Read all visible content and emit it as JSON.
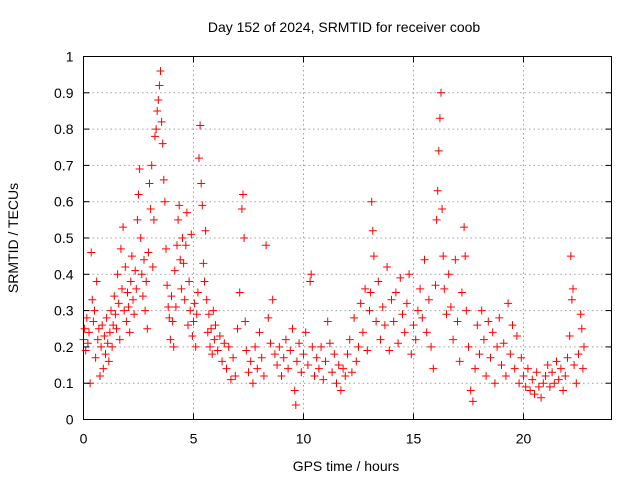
{
  "chart_data": {
    "type": "scatter",
    "title": "Day 152 of 2024, SRMTID for receiver coob",
    "xlabel": "GPS time / hours",
    "ylabel": "SRMTID / TECUs",
    "xlim": [
      0,
      24
    ],
    "ylim": [
      0,
      1
    ],
    "x_ticks": [
      0,
      5,
      10,
      15,
      20
    ],
    "x_tick_labels": [
      "0",
      "5",
      "10",
      "15",
      "20"
    ],
    "y_ticks": [
      0,
      0.1,
      0.2,
      0.3,
      0.4,
      0.5,
      0.6,
      0.7,
      0.8,
      0.9,
      1
    ],
    "y_tick_labels": [
      "0",
      "0.1",
      "0.2",
      "0.3",
      "0.4",
      "0.5",
      "0.6",
      "0.7",
      "0.8",
      "0.9",
      "1"
    ],
    "grid": true,
    "marker": "+",
    "color": "#ff0000",
    "series": [
      {
        "name": "SRMTID",
        "points": [
          [
            0.0,
            0.22
          ],
          [
            0.05,
            0.25
          ],
          [
            0.1,
            0.19
          ],
          [
            0.15,
            0.28
          ],
          [
            0.2,
            0.21
          ],
          [
            0.25,
            0.24
          ],
          [
            0.3,
            0.1
          ],
          [
            0.35,
            0.46
          ],
          [
            0.4,
            0.33
          ],
          [
            0.45,
            0.27
          ],
          [
            0.5,
            0.3
          ],
          [
            0.55,
            0.17
          ],
          [
            0.6,
            0.38
          ],
          [
            0.65,
            0.22
          ],
          [
            0.7,
            0.25
          ],
          [
            0.75,
            0.12
          ],
          [
            0.8,
            0.2
          ],
          [
            0.85,
            0.26
          ],
          [
            0.9,
            0.14
          ],
          [
            0.95,
            0.23
          ],
          [
            1.0,
            0.18
          ],
          [
            1.05,
            0.28
          ],
          [
            1.1,
            0.21
          ],
          [
            1.15,
            0.16
          ],
          [
            1.2,
            0.24
          ],
          [
            1.25,
            0.3
          ],
          [
            1.3,
            0.2
          ],
          [
            1.35,
            0.26
          ],
          [
            1.4,
            0.34
          ],
          [
            1.45,
            0.29
          ],
          [
            1.5,
            0.25
          ],
          [
            1.55,
            0.4
          ],
          [
            1.6,
            0.32
          ],
          [
            1.65,
            0.22
          ],
          [
            1.7,
            0.47
          ],
          [
            1.75,
            0.36
          ],
          [
            1.8,
            0.53
          ],
          [
            1.85,
            0.3
          ],
          [
            1.9,
            0.42
          ],
          [
            1.95,
            0.27
          ],
          [
            2.0,
            0.35
          ],
          [
            2.05,
            0.31
          ],
          [
            2.1,
            0.24
          ],
          [
            2.15,
            0.38
          ],
          [
            2.2,
            0.45
          ],
          [
            2.25,
            0.33
          ],
          [
            2.3,
            0.29
          ],
          [
            2.35,
            0.41
          ],
          [
            2.4,
            0.36
          ],
          [
            2.45,
            0.55
          ],
          [
            2.5,
            0.62
          ],
          [
            2.55,
            0.69
          ],
          [
            2.6,
            0.5
          ],
          [
            2.65,
            0.4
          ],
          [
            2.7,
            0.34
          ],
          [
            2.75,
            0.44
          ],
          [
            2.8,
            0.3
          ],
          [
            2.85,
            0.38
          ],
          [
            2.9,
            0.25
          ],
          [
            2.95,
            0.46
          ],
          [
            3.0,
            0.65
          ],
          [
            3.05,
            0.58
          ],
          [
            3.1,
            0.7
          ],
          [
            3.15,
            0.42
          ],
          [
            3.2,
            0.55
          ],
          [
            3.25,
            0.78
          ],
          [
            3.3,
            0.8
          ],
          [
            3.35,
            0.85
          ],
          [
            3.4,
            0.88
          ],
          [
            3.45,
            0.92
          ],
          [
            3.5,
            0.96
          ],
          [
            3.55,
            0.82
          ],
          [
            3.6,
            0.76
          ],
          [
            3.65,
            0.66
          ],
          [
            3.7,
            0.6
          ],
          [
            3.75,
            0.47
          ],
          [
            3.8,
            0.37
          ],
          [
            3.85,
            0.31
          ],
          [
            3.9,
            0.28
          ],
          [
            3.95,
            0.22
          ],
          [
            4.0,
            0.34
          ],
          [
            4.05,
            0.27
          ],
          [
            4.1,
            0.2
          ],
          [
            4.15,
            0.41
          ],
          [
            4.2,
            0.31
          ],
          [
            4.25,
            0.48
          ],
          [
            4.3,
            0.55
          ],
          [
            4.35,
            0.59
          ],
          [
            4.4,
            0.44
          ],
          [
            4.45,
            0.36
          ],
          [
            4.5,
            0.5
          ],
          [
            4.55,
            0.43
          ],
          [
            4.6,
            0.33
          ],
          [
            4.65,
            0.48
          ],
          [
            4.7,
            0.57
          ],
          [
            4.75,
            0.26
          ],
          [
            4.8,
            0.38
          ],
          [
            4.85,
            0.3
          ],
          [
            4.9,
            0.51
          ],
          [
            4.95,
            0.23
          ],
          [
            5.0,
            0.27
          ],
          [
            5.05,
            0.32
          ],
          [
            5.1,
            0.2
          ],
          [
            5.15,
            0.29
          ],
          [
            5.2,
            0.35
          ],
          [
            5.25,
            0.72
          ],
          [
            5.3,
            0.81
          ],
          [
            5.35,
            0.65
          ],
          [
            5.4,
            0.59
          ],
          [
            5.45,
            0.43
          ],
          [
            5.5,
            0.38
          ],
          [
            5.55,
            0.52
          ],
          [
            5.6,
            0.33
          ],
          [
            5.65,
            0.24
          ],
          [
            5.7,
            0.29
          ],
          [
            5.75,
            0.2
          ],
          [
            5.8,
            0.25
          ],
          [
            5.85,
            0.18
          ],
          [
            5.9,
            0.3
          ],
          [
            5.95,
            0.22
          ],
          [
            6.0,
            0.26
          ],
          [
            6.1,
            0.19
          ],
          [
            6.2,
            0.23
          ],
          [
            6.3,
            0.16
          ],
          [
            6.4,
            0.21
          ],
          [
            6.5,
            0.14
          ],
          [
            6.6,
            0.2
          ],
          [
            6.7,
            0.11
          ],
          [
            6.8,
            0.17
          ],
          [
            6.9,
            0.12
          ],
          [
            7.0,
            0.25
          ],
          [
            7.1,
            0.35
          ],
          [
            7.2,
            0.58
          ],
          [
            7.25,
            0.62
          ],
          [
            7.3,
            0.5
          ],
          [
            7.35,
            0.27
          ],
          [
            7.4,
            0.19
          ],
          [
            7.5,
            0.13
          ],
          [
            7.6,
            0.16
          ],
          [
            7.7,
            0.1
          ],
          [
            7.8,
            0.2
          ],
          [
            7.9,
            0.14
          ],
          [
            8.0,
            0.24
          ],
          [
            8.1,
            0.17
          ],
          [
            8.2,
            0.12
          ],
          [
            8.3,
            0.48
          ],
          [
            8.4,
            0.28
          ],
          [
            8.5,
            0.21
          ],
          [
            8.6,
            0.33
          ],
          [
            8.7,
            0.18
          ],
          [
            8.8,
            0.15
          ],
          [
            8.9,
            0.2
          ],
          [
            9.0,
            0.12
          ],
          [
            9.1,
            0.17
          ],
          [
            9.2,
            0.22
          ],
          [
            9.3,
            0.14
          ],
          [
            9.4,
            0.19
          ],
          [
            9.5,
            0.25
          ],
          [
            9.6,
            0.08
          ],
          [
            9.65,
            0.04
          ],
          [
            9.7,
            0.16
          ],
          [
            9.8,
            0.21
          ],
          [
            9.9,
            0.13
          ],
          [
            10.0,
            0.18
          ],
          [
            10.1,
            0.24
          ],
          [
            10.2,
            0.15
          ],
          [
            10.3,
            0.38
          ],
          [
            10.35,
            0.4
          ],
          [
            10.4,
            0.2
          ],
          [
            10.5,
            0.12
          ],
          [
            10.6,
            0.17
          ],
          [
            10.7,
            0.14
          ],
          [
            10.8,
            0.2
          ],
          [
            10.9,
            0.11
          ],
          [
            11.0,
            0.16
          ],
          [
            11.1,
            0.27
          ],
          [
            11.2,
            0.21
          ],
          [
            11.3,
            0.13
          ],
          [
            11.4,
            0.18
          ],
          [
            11.5,
            0.1
          ],
          [
            11.6,
            0.15
          ],
          [
            11.7,
            0.08
          ],
          [
            11.8,
            0.14
          ],
          [
            11.9,
            0.12
          ],
          [
            12.0,
            0.18
          ],
          [
            12.1,
            0.22
          ],
          [
            12.2,
            0.13
          ],
          [
            12.3,
            0.28
          ],
          [
            12.4,
            0.16
          ],
          [
            12.5,
            0.2
          ],
          [
            12.6,
            0.32
          ],
          [
            12.7,
            0.24
          ],
          [
            12.8,
            0.36
          ],
          [
            12.9,
            0.19
          ],
          [
            13.0,
            0.3
          ],
          [
            13.05,
            0.35
          ],
          [
            13.1,
            0.6
          ],
          [
            13.15,
            0.52
          ],
          [
            13.2,
            0.45
          ],
          [
            13.3,
            0.27
          ],
          [
            13.4,
            0.38
          ],
          [
            13.5,
            0.22
          ],
          [
            13.6,
            0.31
          ],
          [
            13.7,
            0.26
          ],
          [
            13.8,
            0.42
          ],
          [
            13.9,
            0.19
          ],
          [
            14.0,
            0.33
          ],
          [
            14.1,
            0.27
          ],
          [
            14.2,
            0.35
          ],
          [
            14.3,
            0.21
          ],
          [
            14.4,
            0.39
          ],
          [
            14.5,
            0.29
          ],
          [
            14.6,
            0.24
          ],
          [
            14.7,
            0.32
          ],
          [
            14.8,
            0.4
          ],
          [
            14.9,
            0.18
          ],
          [
            15.0,
            0.26
          ],
          [
            15.1,
            0.22
          ],
          [
            15.2,
            0.3
          ],
          [
            15.3,
            0.36
          ],
          [
            15.4,
            0.28
          ],
          [
            15.5,
            0.44
          ],
          [
            15.6,
            0.24
          ],
          [
            15.7,
            0.33
          ],
          [
            15.8,
            0.2
          ],
          [
            15.9,
            0.14
          ],
          [
            16.0,
            0.37
          ],
          [
            16.05,
            0.55
          ],
          [
            16.1,
            0.63
          ],
          [
            16.15,
            0.74
          ],
          [
            16.2,
            0.83
          ],
          [
            16.25,
            0.9
          ],
          [
            16.3,
            0.58
          ],
          [
            16.35,
            0.45
          ],
          [
            16.4,
            0.36
          ],
          [
            16.5,
            0.29
          ],
          [
            16.6,
            0.4
          ],
          [
            16.7,
            0.31
          ],
          [
            16.8,
            0.22
          ],
          [
            16.9,
            0.44
          ],
          [
            17.0,
            0.27
          ],
          [
            17.1,
            0.16
          ],
          [
            17.2,
            0.35
          ],
          [
            17.3,
            0.53
          ],
          [
            17.35,
            0.45
          ],
          [
            17.4,
            0.3
          ],
          [
            17.5,
            0.2
          ],
          [
            17.6,
            0.08
          ],
          [
            17.7,
            0.05
          ],
          [
            17.8,
            0.14
          ],
          [
            17.9,
            0.26
          ],
          [
            18.0,
            0.18
          ],
          [
            18.1,
            0.3
          ],
          [
            18.2,
            0.22
          ],
          [
            18.3,
            0.12
          ],
          [
            18.4,
            0.27
          ],
          [
            18.5,
            0.17
          ],
          [
            18.6,
            0.24
          ],
          [
            18.7,
            0.1
          ],
          [
            18.8,
            0.2
          ],
          [
            18.9,
            0.28
          ],
          [
            19.0,
            0.15
          ],
          [
            19.1,
            0.21
          ],
          [
            19.2,
            0.12
          ],
          [
            19.3,
            0.32
          ],
          [
            19.4,
            0.18
          ],
          [
            19.5,
            0.26
          ],
          [
            19.6,
            0.14
          ],
          [
            19.7,
            0.23
          ],
          [
            19.8,
            0.1
          ],
          [
            19.9,
            0.17
          ],
          [
            20.0,
            0.12
          ],
          [
            20.1,
            0.09
          ],
          [
            20.2,
            0.14
          ],
          [
            20.3,
            0.08
          ],
          [
            20.4,
            0.11
          ],
          [
            20.5,
            0.07
          ],
          [
            20.6,
            0.13
          ],
          [
            20.7,
            0.09
          ],
          [
            20.8,
            0.06
          ],
          [
            20.9,
            0.1
          ],
          [
            21.0,
            0.12
          ],
          [
            21.1,
            0.15
          ],
          [
            21.2,
            0.09
          ],
          [
            21.3,
            0.13
          ],
          [
            21.4,
            0.1
          ],
          [
            21.5,
            0.16
          ],
          [
            21.6,
            0.11
          ],
          [
            21.7,
            0.14
          ],
          [
            21.8,
            0.08
          ],
          [
            21.9,
            0.12
          ],
          [
            22.0,
            0.17
          ],
          [
            22.1,
            0.23
          ],
          [
            22.15,
            0.45
          ],
          [
            22.2,
            0.33
          ],
          [
            22.25,
            0.36
          ],
          [
            22.3,
            0.15
          ],
          [
            22.4,
            0.1
          ],
          [
            22.5,
            0.18
          ],
          [
            22.6,
            0.29
          ],
          [
            22.65,
            0.25
          ],
          [
            22.7,
            0.14
          ],
          [
            22.75,
            0.2
          ]
        ]
      }
    ]
  }
}
